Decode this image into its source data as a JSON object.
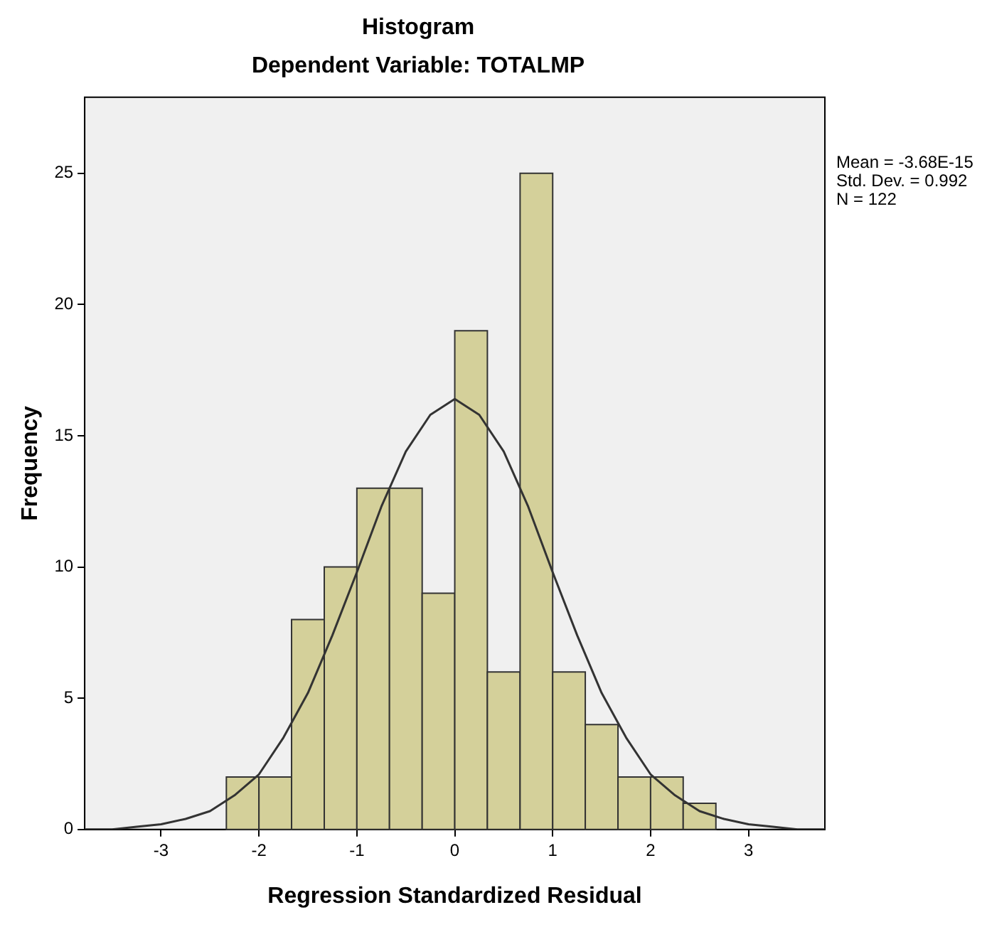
{
  "chart_data": {
    "type": "histogram",
    "title": "Histogram",
    "subtitle": "Dependent Variable: TOTALMP",
    "xlabel": "Regression Standardized Residual",
    "ylabel": "Frequency",
    "bins": [
      -2.333,
      -2,
      -1.667,
      -1.333,
      -1,
      -0.667,
      -0.333,
      0,
      0.333,
      0.667,
      1,
      1.333,
      1.667,
      2,
      2.333,
      2.667
    ],
    "values": [
      2,
      2,
      8,
      10,
      13,
      13,
      9,
      19,
      6,
      25,
      6,
      4,
      2,
      2,
      1
    ],
    "color": "#d4d09a",
    "series": [
      {
        "type": "line",
        "color": "#333333",
        "x": [
          -3.78,
          -3.5,
          -3.25,
          -3,
          -2.75,
          -2.5,
          -2.25,
          -2,
          -1.75,
          -1.5,
          -1.25,
          -1,
          -0.75,
          -0.5,
          -0.25,
          0,
          0.25,
          0.5,
          0.75,
          1,
          1.25,
          1.5,
          1.75,
          2,
          2.25,
          2.5,
          2.75,
          3,
          3.25,
          3.5,
          3.78
        ],
        "values": [
          0,
          0,
          0.1,
          0.2,
          0.4,
          0.7,
          1.3,
          2.1,
          3.5,
          5.2,
          7.4,
          9.8,
          12.3,
          14.4,
          15.8,
          16.4,
          15.8,
          14.4,
          12.3,
          9.8,
          7.4,
          5.2,
          3.5,
          2.1,
          1.3,
          0.7,
          0.4,
          0.2,
          0.1,
          0,
          0
        ]
      }
    ],
    "xlim": [
      -3.78,
      3.78
    ],
    "ylim": [
      0,
      27.9
    ],
    "xticks": [
      -3,
      -2,
      -1,
      0,
      1,
      2,
      3
    ],
    "yticks": [
      0,
      5,
      10,
      15,
      20,
      25
    ],
    "grid": false,
    "legend": false,
    "marker": "none",
    "line_style": "solid",
    "annotations": [
      "Mean = -3.68E-15",
      "Std. Dev. = 0.992",
      "N = 122"
    ]
  }
}
